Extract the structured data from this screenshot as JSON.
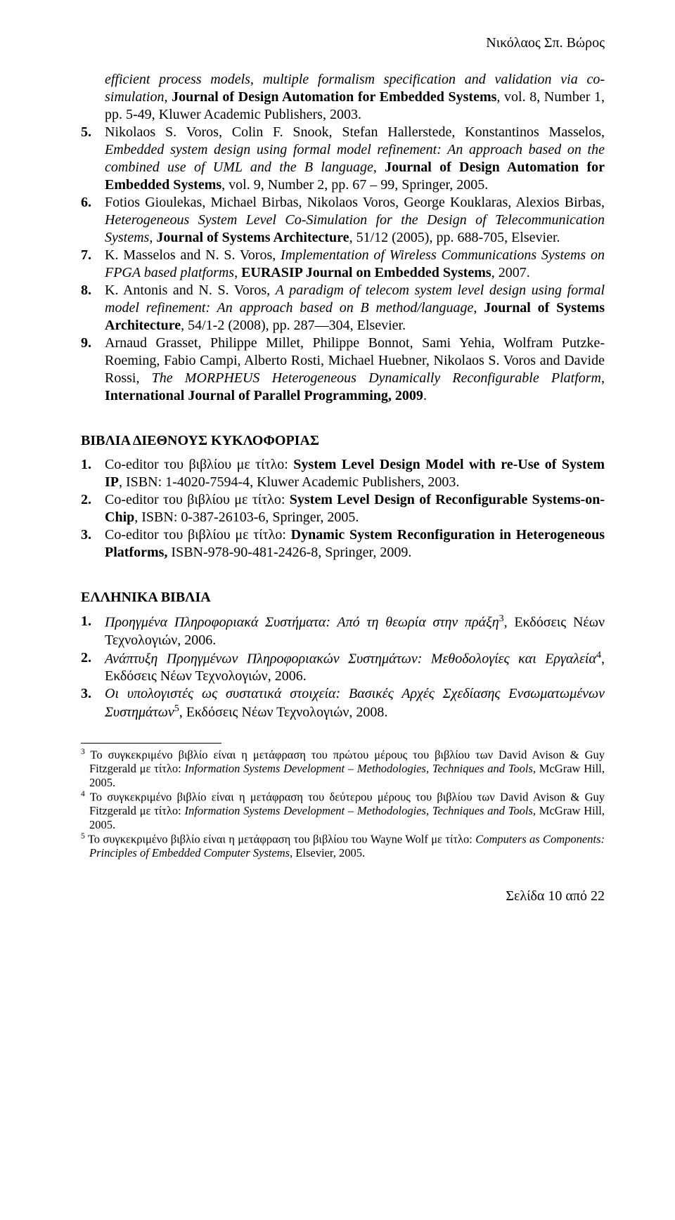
{
  "header": {
    "name": "Νικόλαος Σπ. Βώρος"
  },
  "continuation": {
    "lead_text": "efficient process models, multiple formalism specification and validation via co-simulation",
    "lead_tail": ", ",
    "journal": "Journal of Design Automation for Embedded Systems",
    "tail": ", vol. 8, Number 1, pp. 5-49, Kluwer Academic Publishers, 2003."
  },
  "refs_a": [
    {
      "num": "5.",
      "authors": "Nikolaos S. Voros, Colin F. Snook, Stefan Hallerstede, Konstantinos Masselos, ",
      "title": "Embedded system design using formal model refinement: An approach based on the combined use of UML and the B language",
      "mid": ", ",
      "journal": "Journal of Design Automation for Embedded Systems",
      "tail": ", vol. 9, Number 2, pp. 67 – 99, Springer, 2005."
    },
    {
      "num": "6.",
      "authors": "Fotios Gioulekas, Michael Birbas, Nikolaos Voros, George Kouklaras, Alexios Birbas, ",
      "title": "Heterogeneous System Level Co-Simulation for the Design of Telecommunication Systems",
      "mid": ", ",
      "journal": "Journal of Systems Architecture",
      "tail": ", 51/12 (2005), pp. 688-705, Elsevier."
    },
    {
      "num": "7.",
      "authors": "K. Masselos and N. S. Voros, ",
      "title": "Implementation of Wireless Communications Systems on FPGA based platforms",
      "mid": ", ",
      "journal": "EURASIP Journal on Embedded Systems",
      "tail": ", 2007."
    },
    {
      "num": "8.",
      "authors": "K. Antonis and N. S. Voros, ",
      "title": "A paradigm of telecom system level design using formal model refinement: An approach based on B method/language",
      "mid": ", ",
      "journal": "Journal of Systems Architecture",
      "tail": ", 54/1-2 (2008), pp. 287—304, Elsevier."
    },
    {
      "num": "9.",
      "authors": "Arnaud Grasset, Philippe Millet, Philippe Bonnot, Sami Yehia, Wolfram Putzke-Roeming, Fabio Campi, Alberto Rosti, Michael Huebner, Nikolaos S. Voros and Davide Rossi, ",
      "title": "The MORPHEUS Heterogeneous Dynamically Reconfigurable Platform",
      "mid": ", ",
      "journal": "International Journal of Parallel Programming, 2009",
      "tail": "."
    }
  ],
  "section_b": {
    "title": "ΒΙΒΛΙΑ ΔΙΕΘΝΟΥΣ ΚΥΚΛΟΦΟΡΙΑΣ"
  },
  "refs_b": [
    {
      "num": "1.",
      "pre": "Co-editor του βιβλίου με τίτλο: ",
      "btitle": "System Level Design Model with re-Use of System IP",
      "tail": ", ISBN: 1-4020-7594-4, Kluwer Academic Publishers, 2003."
    },
    {
      "num": "2.",
      "pre": "Co-editor του βιβλίου με τίτλο: ",
      "btitle": "System Level Design of Reconfigurable Systems-on-Chip",
      "tail": ", ISBN: 0-387-26103-6, Springer, 2005."
    },
    {
      "num": "3.",
      "pre": "Co-editor του βιβλίου με τίτλο: ",
      "btitle": "Dynamic System Reconfiguration in Heterogeneous Platforms, ",
      "tail": "ISBN-978-90-481-2426-8, Springer, 2009."
    }
  ],
  "section_c": {
    "title": "ΕΛΛΗΝΙΚΑ ΒΙΒΛΙΑ"
  },
  "refs_c": [
    {
      "num": "1.",
      "title": "Προηγμένα Πληροφοριακά Συστήματα: Από τη θεωρία στην πράξη",
      "sup": "3",
      "tail": ", Εκδόσεις Νέων Τεχνολογιών, 2006."
    },
    {
      "num": "2.",
      "title": "Ανάπτυξη Προηγμένων Πληροφοριακών Συστημάτων: Μεθοδολογίες και Εργαλεία",
      "sup": "4",
      "tail": ", Εκδόσεις Νέων Τεχνολογιών, 2006."
    },
    {
      "num": "3.",
      "title": "Οι υπολογιστές ως συστατικά στοιχεία: Βασικές Αρχές Σχεδίασης Ενσωματωμένων Συστημάτων",
      "sup": "5",
      "tail": ", Εκδόσεις Νέων Τεχνολογιών, 2008."
    }
  ],
  "footnotes": [
    {
      "sup": "3",
      "pre": " Το συγκεκριμένο βιβλίο είναι η μετάφραση του πρώτου μέρους του βιβλίου των David Avison & Guy Fitzgerald με τίτλο: ",
      "ititle": "Information Systems Development – Methodologies, Techniques and Tools,",
      "tail": " McGraw Hill, 2005."
    },
    {
      "sup": "4",
      "pre": " Το συγκεκριμένο βιβλίο είναι η μετάφραση του δεύτερου μέρους του βιβλίου των David Avison & Guy Fitzgerald με τίτλο: ",
      "ititle": "Information Systems Development – Methodologies, Techniques and Tools,",
      "tail": " McGraw Hill, 2005."
    },
    {
      "sup": "5",
      "pre": " Το συγκεκριμένο βιβλίο είναι η μετάφραση του βιβλίου του Wayne Wolf με τίτλο: ",
      "ititle": "Computers as Components: Principles of Embedded Computer Systems,",
      "tail": " Elsevier, 2005."
    }
  ],
  "footer": {
    "text": "Σελίδα 10 από 22"
  }
}
